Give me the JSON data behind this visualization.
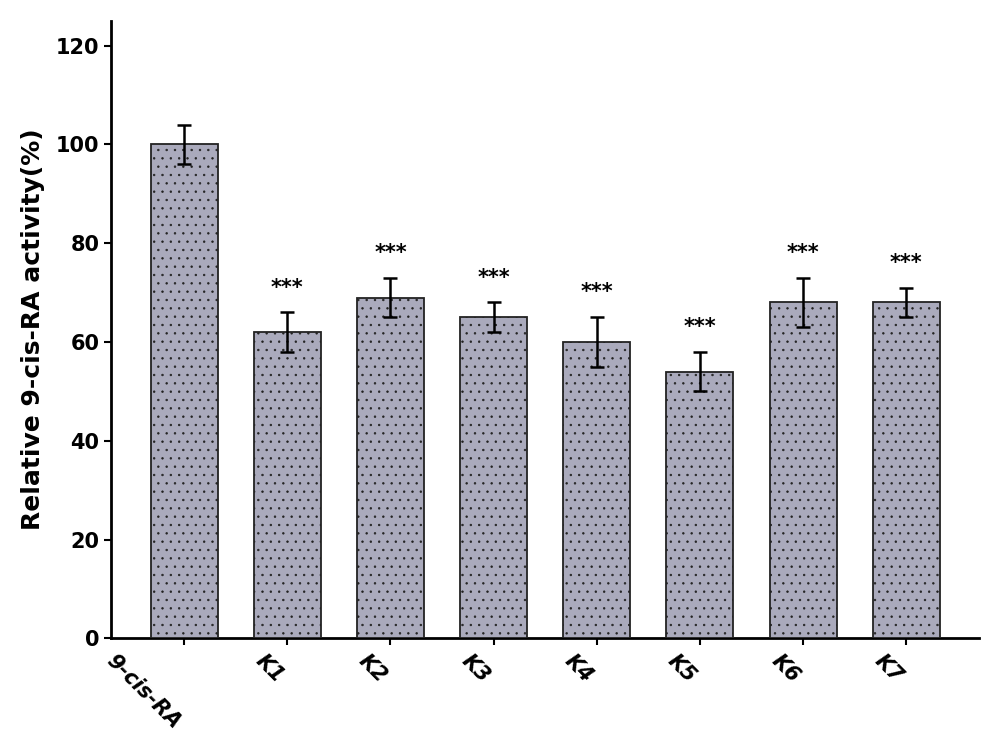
{
  "categories": [
    "9-cis-RA",
    "K1",
    "K2",
    "K3",
    "K4",
    "K5",
    "K6",
    "K7"
  ],
  "values": [
    100,
    62,
    69,
    65,
    60,
    54,
    68,
    68
  ],
  "errors": [
    4,
    4,
    4,
    3,
    5,
    4,
    5,
    3
  ],
  "bar_color": "#aaaabc",
  "bar_edge_color": "#222222",
  "dot_color": "#ffffff",
  "significance": [
    null,
    "***",
    "***",
    "***",
    "***",
    "***",
    "***",
    "***"
  ],
  "ylabel": "Relative 9-cis-RA activity(%)",
  "ylim": [
    0,
    125
  ],
  "yticks": [
    0,
    20,
    40,
    60,
    80,
    100,
    120
  ],
  "xlabel_rotation": -45,
  "significance_fontsize": 15,
  "ylabel_fontsize": 18,
  "tick_fontsize": 15,
  "bar_width": 0.65,
  "figsize": [
    10.0,
    7.53
  ],
  "dpi": 100,
  "background_color": "#ffffff",
  "spine_color": "#000000",
  "error_capsize": 5,
  "error_linewidth": 1.8,
  "error_color": "#000000"
}
